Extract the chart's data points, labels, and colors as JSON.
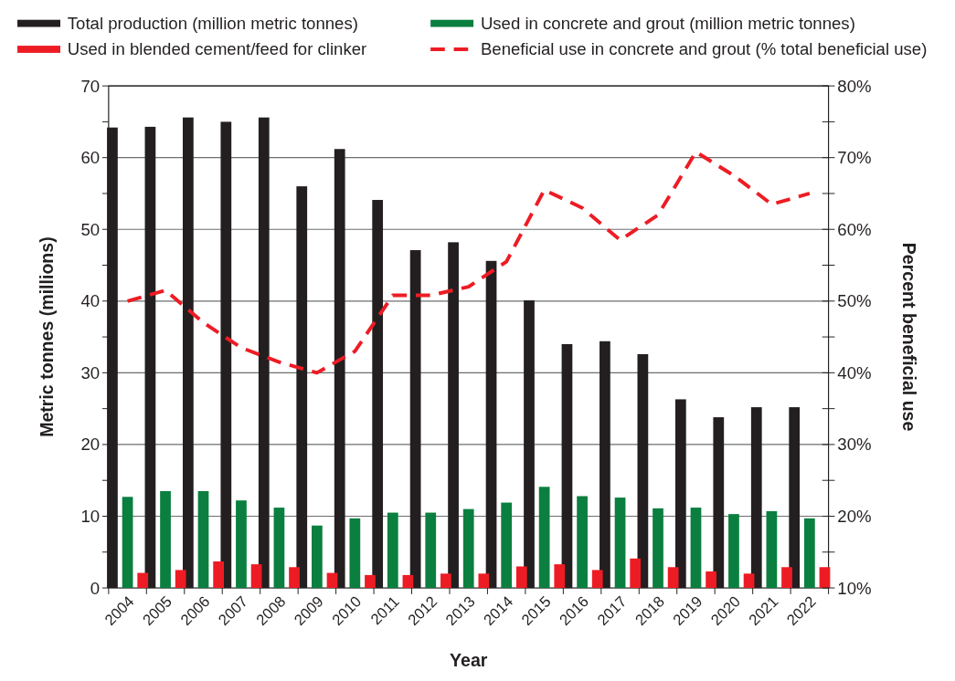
{
  "chart_data": {
    "type": "bar",
    "xlabel": "Year",
    "ylabel": "Metric tonnes (millions)",
    "y2label": "Percent beneficial use",
    "categories": [
      "2004",
      "2005",
      "2006",
      "2007",
      "2008",
      "2009",
      "2010",
      "2011",
      "2012",
      "2013",
      "2014",
      "2015",
      "2016",
      "2017",
      "2018",
      "2019",
      "2020",
      "2021",
      "2022"
    ],
    "series": [
      {
        "name": "Total production (million metric tonnes)",
        "color": "#231f20",
        "values": [
          64.2,
          64.3,
          65.6,
          65.0,
          65.6,
          56.0,
          61.2,
          54.1,
          47.1,
          48.2,
          45.6,
          40.1,
          34.0,
          34.4,
          32.6,
          26.3,
          23.8,
          25.2,
          25.2
        ]
      },
      {
        "name": "Used in concrete and grout (million metric tonnes)",
        "color": "#0b7f3f",
        "values": [
          12.7,
          13.5,
          13.5,
          12.2,
          11.2,
          8.7,
          9.7,
          10.5,
          10.5,
          11.0,
          11.9,
          14.1,
          12.8,
          12.6,
          11.1,
          11.2,
          10.3,
          10.7,
          9.7
        ]
      },
      {
        "name": "Used in blended cement/feed for clinker",
        "color": "#ed1c24",
        "values": [
          2.1,
          2.5,
          3.7,
          3.3,
          2.9,
          2.1,
          1.8,
          1.8,
          2.0,
          2.0,
          3.0,
          3.3,
          2.5,
          4.1,
          2.9,
          2.3,
          2.0,
          2.9,
          2.9
        ]
      },
      {
        "name": "Beneficial use in concrete and grout (% total beneficial use)",
        "type": "line",
        "axis": "y2",
        "line_style": "dashed",
        "color": "#ed1c24",
        "values": [
          50,
          51.5,
          47,
          43.5,
          41.5,
          40,
          43,
          50.8,
          50.8,
          52,
          55.5,
          65.5,
          63,
          58.5,
          62,
          70.8,
          67.5,
          63.5,
          65
        ]
      }
    ],
    "ylim": [
      0,
      70
    ],
    "yticks": [
      0,
      {
        "value": 5,
        "label": null
      },
      10,
      {
        "value": 15,
        "label": null
      },
      20,
      {
        "value": 25,
        "label": null
      },
      30,
      {
        "value": 35,
        "label": null
      },
      40,
      {
        "value": 45,
        "label": null
      },
      50,
      {
        "value": 55,
        "label": null
      },
      60,
      {
        "value": 65,
        "label": null
      },
      70
    ],
    "y2lim": [
      10,
      80
    ],
    "y2ticks": [
      {
        "value": 10,
        "label": "10%"
      },
      {
        "value": 15,
        "label": null
      },
      {
        "value": 20,
        "label": "20%"
      },
      {
        "value": 25,
        "label": null
      },
      {
        "value": 30,
        "label": "30%"
      },
      {
        "value": 35,
        "label": null
      },
      {
        "value": 40,
        "label": "40%"
      },
      {
        "value": 45,
        "label": null
      },
      {
        "value": 50,
        "label": "50%"
      },
      {
        "value": 55,
        "label": null
      },
      {
        "value": 60,
        "label": "60%"
      },
      {
        "value": 65,
        "label": null
      },
      {
        "value": 70,
        "label": "70%"
      },
      {
        "value": 75,
        "label": null
      },
      {
        "value": 80,
        "label": "80%"
      }
    ],
    "grid": "y",
    "legend": "top"
  }
}
